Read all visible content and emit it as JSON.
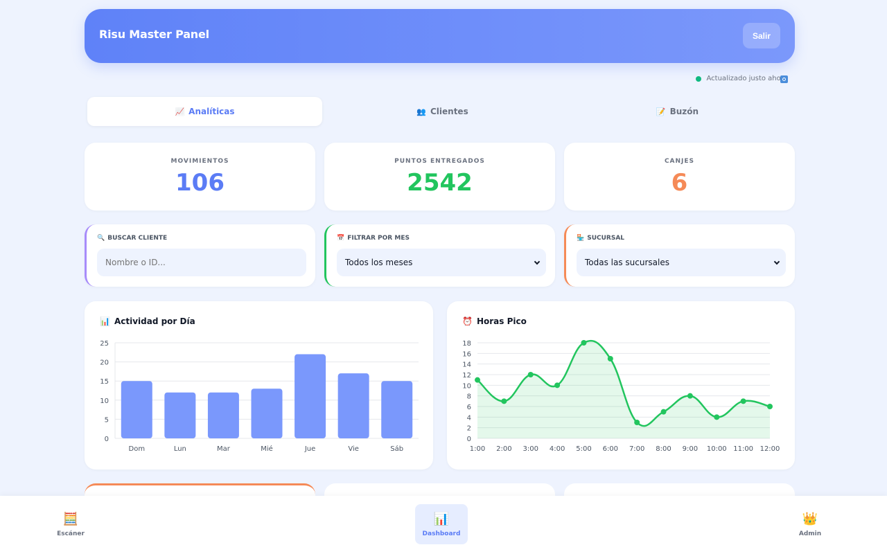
{
  "header": {
    "title": "Risu Master Panel",
    "logout_label": "Salir"
  },
  "status": {
    "text": "Actualizado justo ahora",
    "icon": "refresh-icon"
  },
  "tabs": [
    {
      "label": "Analíticas",
      "icon": "📈",
      "active": true
    },
    {
      "label": "Clientes",
      "icon": "👥",
      "active": false
    },
    {
      "label": "Buzón",
      "icon": "📝",
      "active": false
    }
  ],
  "stats": [
    {
      "label": "MOVIMIENTOS",
      "value": "106",
      "color": "#5b7cf5"
    },
    {
      "label": "PUNTOS ENTREGADOS",
      "value": "2542",
      "color": "#22c55e"
    },
    {
      "label": "CANJES",
      "value": "6",
      "color": "#f58a57"
    }
  ],
  "filters": {
    "search": {
      "label": "BUSCAR CLIENTE",
      "icon": "🔍",
      "placeholder": "Nombre o ID...",
      "accent": "#a78bfa"
    },
    "month": {
      "label": "FILTRAR POR MES",
      "icon": "📅",
      "value": "Todos los meses",
      "accent": "#22c55e"
    },
    "branch": {
      "label": "SUCURSAL",
      "icon": "🏪",
      "value": "Todas las sucursales",
      "accent": "#f58a57"
    }
  },
  "charts": {
    "activity_title": "Actividad por Día",
    "activity_icon": "📊",
    "peak_title": "Horas Pico",
    "peak_icon": "⏰"
  },
  "chart_data": [
    {
      "type": "bar",
      "title": "Actividad por Día",
      "categories": [
        "Dom",
        "Lun",
        "Mar",
        "Mié",
        "Jue",
        "Vie",
        "Sáb"
      ],
      "values": [
        15,
        12,
        12,
        13,
        22,
        17,
        15
      ],
      "ylim": [
        0,
        25
      ],
      "yticks": [
        0,
        5,
        10,
        15,
        20,
        25
      ],
      "color": "#7a98fc"
    },
    {
      "type": "area",
      "title": "Horas Pico",
      "x": [
        "1:00",
        "2:00",
        "3:00",
        "4:00",
        "5:00",
        "6:00",
        "7:00",
        "8:00",
        "9:00",
        "10:00",
        "11:00",
        "12:00"
      ],
      "values": [
        11,
        7,
        12,
        10,
        18,
        15,
        3,
        5,
        8,
        4,
        7,
        6
      ],
      "ylim": [
        0,
        18
      ],
      "yticks": [
        0,
        2,
        4,
        6,
        8,
        10,
        12,
        14,
        16,
        18
      ],
      "color": "#22c55e"
    }
  ],
  "nav": [
    {
      "label": "Escáner",
      "icon": "🧮",
      "active": false
    },
    {
      "label": "Dashboard",
      "icon": "📊",
      "active": true
    },
    {
      "label": "Admin",
      "icon": "👑",
      "active": false
    }
  ]
}
